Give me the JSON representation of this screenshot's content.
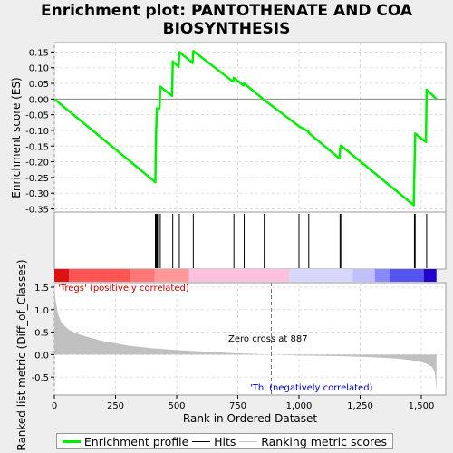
{
  "title": "Enrichment plot: PANTOTHENATE AND COA BIOSYNTHESIS",
  "chart_data": {
    "type": "line",
    "title": "Enrichment plot: PANTOTHENATE AND COA BIOSYNTHESIS",
    "panels": {
      "enrichment": {
        "ylabel": "Enrichment score (ES)",
        "ylim": [
          -0.36,
          0.18
        ],
        "yticks": [
          "0.15",
          "0.10",
          "0.05",
          "0.00",
          "-0.05",
          "-0.10",
          "-0.15",
          "-0.20",
          "-0.25",
          "-0.30",
          "-0.35"
        ],
        "ytick_values": [
          0.15,
          0.1,
          0.05,
          0.0,
          -0.05,
          -0.1,
          -0.15,
          -0.2,
          -0.25,
          -0.3,
          -0.35
        ],
        "series": [
          {
            "name": "Enrichment profile",
            "color": "#00ee00",
            "points": [
              [
                0,
                0.0
              ],
              [
                413,
                -0.265
              ],
              [
                414,
                -0.185
              ],
              [
                416,
                -0.105
              ],
              [
                419,
                -0.03
              ],
              [
                430,
                -0.03
              ],
              [
                433,
                0.04
              ],
              [
                481,
                0.01
              ],
              [
                484,
                0.12
              ],
              [
                508,
                0.103
              ],
              [
                511,
                0.15
              ],
              [
                565,
                0.115
              ],
              [
                568,
                0.153
              ],
              [
                731,
                0.055
              ],
              [
                734,
                0.068
              ],
              [
                773,
                0.043
              ],
              [
                776,
                0.05
              ],
              [
                858,
                -0.003
              ],
              [
                997,
                -0.085
              ],
              [
                1000,
                -0.087
              ],
              [
                1038,
                -0.103
              ],
              [
                1040,
                -0.108
              ],
              [
                1165,
                -0.19
              ],
              [
                1168,
                -0.16
              ],
              [
                1171,
                -0.148
              ],
              [
                1469,
                -0.338
              ],
              [
                1472,
                -0.23
              ],
              [
                1475,
                -0.11
              ],
              [
                1519,
                -0.137
              ],
              [
                1522,
                0.03
              ],
              [
                1562,
                0.0
              ]
            ]
          }
        ]
      },
      "hits": {
        "name": "Hits",
        "positions": [
          413,
          416,
          419,
          422,
          433,
          484,
          511,
          568,
          734,
          776,
          858,
          1000,
          1040,
          1168,
          1171,
          1472,
          1475,
          1522
        ]
      },
      "ranking": {
        "ylabel": "Ranked list metric (Diff_of_Classes)",
        "ylim": [
          -0.9,
          1.6
        ],
        "yticks": [
          "1.5",
          "1.0",
          "0.5",
          "0.0",
          "-0.5"
        ],
        "ytick_values": [
          1.5,
          1.0,
          0.5,
          0.0,
          -0.5
        ],
        "xlabel": "Rank in Ordered Dataset",
        "xlim": [
          0,
          1600
        ],
        "xticks": [
          "0",
          "250",
          "500",
          "750",
          "1,000",
          "1,250",
          "1,500"
        ],
        "xtick_values": [
          0,
          250,
          500,
          750,
          1000,
          1250,
          1500
        ],
        "zero_cross_label": "Zero cross at 887",
        "zero_cross": 887,
        "pos_label": "'Tregs' (positively correlated)",
        "neg_label": "'Th' (negatively correlated)",
        "series": [
          {
            "name": "Ranking metric scores",
            "color": "#c0c0c0",
            "points": [
              [
                0,
                1.55
              ],
              [
                5,
                1.2
              ],
              [
                15,
                0.9
              ],
              [
                30,
                0.7
              ],
              [
                60,
                0.55
              ],
              [
                100,
                0.45
              ],
              [
                150,
                0.37
              ],
              [
                200,
                0.3
              ],
              [
                300,
                0.2
              ],
              [
                400,
                0.14
              ],
              [
                500,
                0.1
              ],
              [
                600,
                0.07
              ],
              [
                700,
                0.04
              ],
              [
                800,
                0.02
              ],
              [
                887,
                0.0
              ],
              [
                1000,
                -0.02
              ],
              [
                1100,
                -0.03
              ],
              [
                1200,
                -0.04
              ],
              [
                1300,
                -0.06
              ],
              [
                1400,
                -0.09
              ],
              [
                1480,
                -0.14
              ],
              [
                1520,
                -0.2
              ],
              [
                1545,
                -0.28
              ],
              [
                1555,
                -0.4
              ],
              [
                1562,
                -0.8
              ]
            ]
          }
        ]
      }
    },
    "legend": [
      {
        "label": "Enrichment profile",
        "color": "#00ee00"
      },
      {
        "label": "Hits",
        "color": "#000000"
      },
      {
        "label": "Ranking metric scores",
        "color": "#c0c0c0"
      }
    ]
  }
}
